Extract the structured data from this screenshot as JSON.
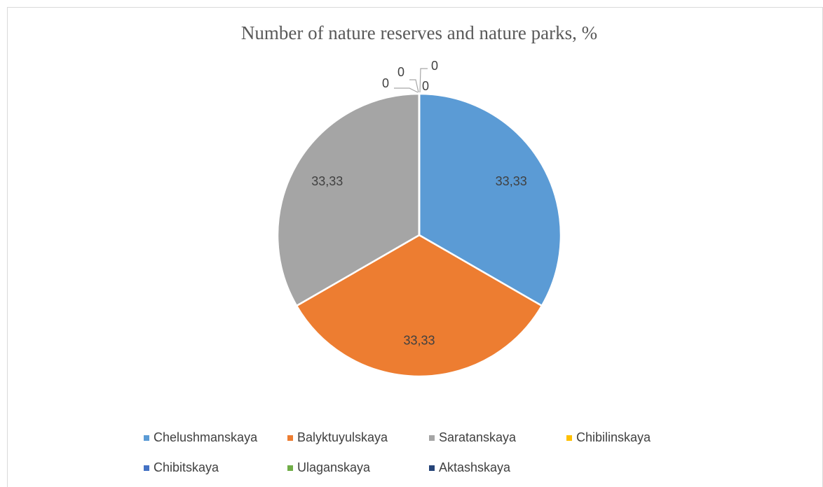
{
  "chart_data": {
    "type": "pie",
    "title": "Number of nature reserves and nature parks, %",
    "categories": [
      "Chelushmanskaya",
      "Balyktuyulskaya",
      "Saratanskaya",
      "Chibilinskaya",
      "Chibitskaya",
      "Ulaganskaya",
      "Aktashskaya"
    ],
    "values": [
      33.33,
      33.33,
      33.33,
      0,
      0,
      0,
      0
    ],
    "value_labels": [
      "33,33",
      "33,33",
      "33,33",
      "0",
      "0",
      "0",
      "0"
    ],
    "colors": [
      "#5b9bd5",
      "#ed7d31",
      "#a5a5a5",
      "#ffc000",
      "#4472c4",
      "#70ad47",
      "#264478"
    ],
    "legend": "bottom"
  }
}
